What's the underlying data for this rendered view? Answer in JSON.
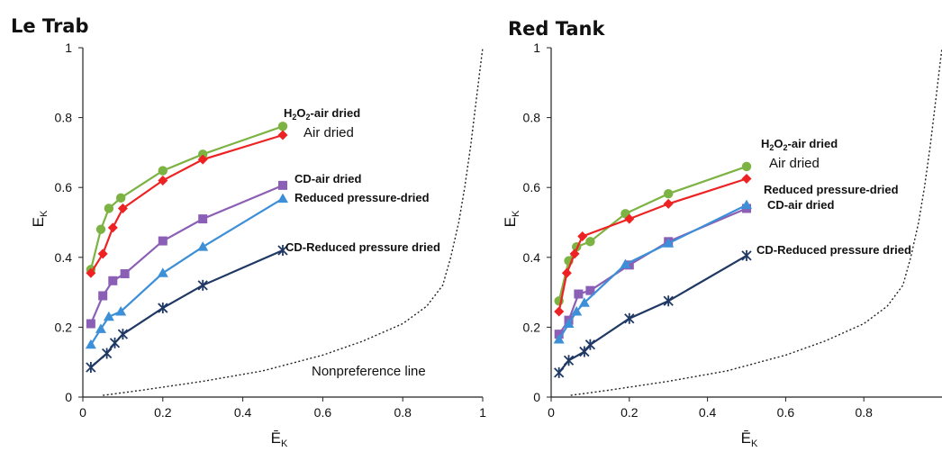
{
  "chart_data": [
    {
      "type": "line",
      "title": "Le Trab",
      "xlabel": "Ē",
      "xlabel_sub": "K",
      "ylabel": "E",
      "ylabel_sub": "K",
      "xlim": [
        0,
        1
      ],
      "ylim": [
        0,
        1
      ],
      "xticks": [
        "0",
        "0.2",
        "0.4",
        "0.6",
        "0.8",
        "1"
      ],
      "yticks": [
        "0",
        "0.2",
        "0.4",
        "0.6",
        "0.8",
        "1"
      ],
      "grid": false,
      "legend": "none",
      "series": [
        {
          "id": "h2o2",
          "color": "#7cb342",
          "marker": "circle",
          "x": [
            0.02,
            0.045,
            0.065,
            0.095,
            0.2,
            0.3,
            0.5
          ],
          "y": [
            0.365,
            0.48,
            0.54,
            0.57,
            0.648,
            0.695,
            0.775
          ]
        },
        {
          "id": "air",
          "color": "#ee2222",
          "marker": "diamond",
          "x": [
            0.02,
            0.05,
            0.075,
            0.1,
            0.2,
            0.3,
            0.5
          ],
          "y": [
            0.355,
            0.41,
            0.485,
            0.54,
            0.62,
            0.68,
            0.75
          ]
        },
        {
          "id": "cdair",
          "color": "#8a5fb5",
          "marker": "square",
          "x": [
            0.02,
            0.05,
            0.075,
            0.105,
            0.2,
            0.3,
            0.5
          ],
          "y": [
            0.21,
            0.29,
            0.333,
            0.353,
            0.447,
            0.51,
            0.606
          ]
        },
        {
          "id": "reduced",
          "color": "#3d8fd8",
          "marker": "triangle",
          "x": [
            0.02,
            0.045,
            0.065,
            0.095,
            0.2,
            0.3,
            0.5
          ],
          "y": [
            0.15,
            0.195,
            0.23,
            0.245,
            0.355,
            0.43,
            0.568
          ]
        },
        {
          "id": "cdreduced",
          "color": "#1f3864",
          "marker": "star",
          "x": [
            0.02,
            0.06,
            0.08,
            0.1,
            0.2,
            0.3,
            0.5
          ],
          "y": [
            0.085,
            0.125,
            0.155,
            0.18,
            0.255,
            0.32,
            0.42
          ]
        }
      ],
      "nonpreference_line": {
        "x": [
          0.05,
          0.15,
          0.3,
          0.45,
          0.6,
          0.7,
          0.8,
          0.86,
          0.9,
          0.92,
          0.94,
          0.955,
          0.97,
          0.985,
          1.0
        ],
        "y": [
          0.005,
          0.02,
          0.045,
          0.075,
          0.12,
          0.16,
          0.21,
          0.26,
          0.32,
          0.4,
          0.5,
          0.6,
          0.72,
          0.86,
          1.0
        ]
      },
      "annotations": [
        {
          "id": "h2o2-label",
          "main": "H",
          "sub1": "2",
          "mid": "O",
          "sub2": "2",
          "tail": "-air dried"
        },
        {
          "id": "air-label",
          "text": "Air dried"
        },
        {
          "id": "cdair-label",
          "text": "CD-air dried"
        },
        {
          "id": "reduced-label",
          "text": "Reduced pressure-dried"
        },
        {
          "id": "cdreduced-label",
          "text": "CD-Reduced pressure dried"
        },
        {
          "id": "nonpref-label",
          "text": "Nonpreference line"
        }
      ]
    },
    {
      "type": "line",
      "title": "Red Tank",
      "xlabel": "Ē",
      "xlabel_sub": "K",
      "ylabel": "E",
      "ylabel_sub": "K",
      "xlim": [
        0,
        1
      ],
      "ylim": [
        0,
        1
      ],
      "xticks": [
        "0",
        "0.2",
        "0.4",
        "0.6",
        "0.8"
      ],
      "yticks": [
        "0",
        "0.2",
        "0.4",
        "0.6",
        "0.8",
        "1"
      ],
      "grid": false,
      "legend": "none",
      "series": [
        {
          "id": "h2o2",
          "color": "#7cb342",
          "marker": "circle",
          "x": [
            0.02,
            0.045,
            0.065,
            0.1,
            0.19,
            0.3,
            0.5
          ],
          "y": [
            0.275,
            0.39,
            0.43,
            0.445,
            0.525,
            0.582,
            0.66
          ]
        },
        {
          "id": "air",
          "color": "#ee2222",
          "marker": "diamond",
          "x": [
            0.02,
            0.04,
            0.06,
            0.08,
            0.2,
            0.3,
            0.5
          ],
          "y": [
            0.245,
            0.355,
            0.41,
            0.46,
            0.51,
            0.553,
            0.625
          ]
        },
        {
          "id": "cdair",
          "color": "#8a5fb5",
          "marker": "square",
          "x": [
            0.02,
            0.045,
            0.07,
            0.1,
            0.2,
            0.3,
            0.5
          ],
          "y": [
            0.18,
            0.22,
            0.295,
            0.305,
            0.378,
            0.445,
            0.54
          ]
        },
        {
          "id": "reduced",
          "color": "#3d8fd8",
          "marker": "triangle",
          "x": [
            0.02,
            0.045,
            0.065,
            0.085,
            0.19,
            0.3,
            0.5
          ],
          "y": [
            0.165,
            0.21,
            0.245,
            0.27,
            0.38,
            0.44,
            0.55
          ]
        },
        {
          "id": "cdreduced",
          "color": "#1f3864",
          "marker": "star",
          "x": [
            0.02,
            0.045,
            0.085,
            0.1,
            0.2,
            0.3,
            0.5
          ],
          "y": [
            0.07,
            0.105,
            0.13,
            0.15,
            0.225,
            0.275,
            0.405
          ]
        }
      ],
      "nonpreference_line": {
        "x": [
          0.05,
          0.15,
          0.3,
          0.45,
          0.6,
          0.7,
          0.8,
          0.86,
          0.9,
          0.92,
          0.94,
          0.955,
          0.97,
          0.985,
          1.0
        ],
        "y": [
          0.005,
          0.02,
          0.045,
          0.075,
          0.12,
          0.16,
          0.21,
          0.26,
          0.32,
          0.4,
          0.5,
          0.6,
          0.72,
          0.86,
          1.0
        ]
      },
      "annotations": [
        {
          "id": "h2o2-label",
          "main": "H",
          "sub1": "2",
          "mid": "O",
          "sub2": "2",
          "tail": "-air dried"
        },
        {
          "id": "air-label",
          "text": "Air dried"
        },
        {
          "id": "reduced-label",
          "text": "Reduced pressure-dried"
        },
        {
          "id": "cdair-label",
          "text": "CD-air dried"
        },
        {
          "id": "cdreduced-label",
          "text": "CD-Reduced pressure dried"
        }
      ]
    }
  ]
}
